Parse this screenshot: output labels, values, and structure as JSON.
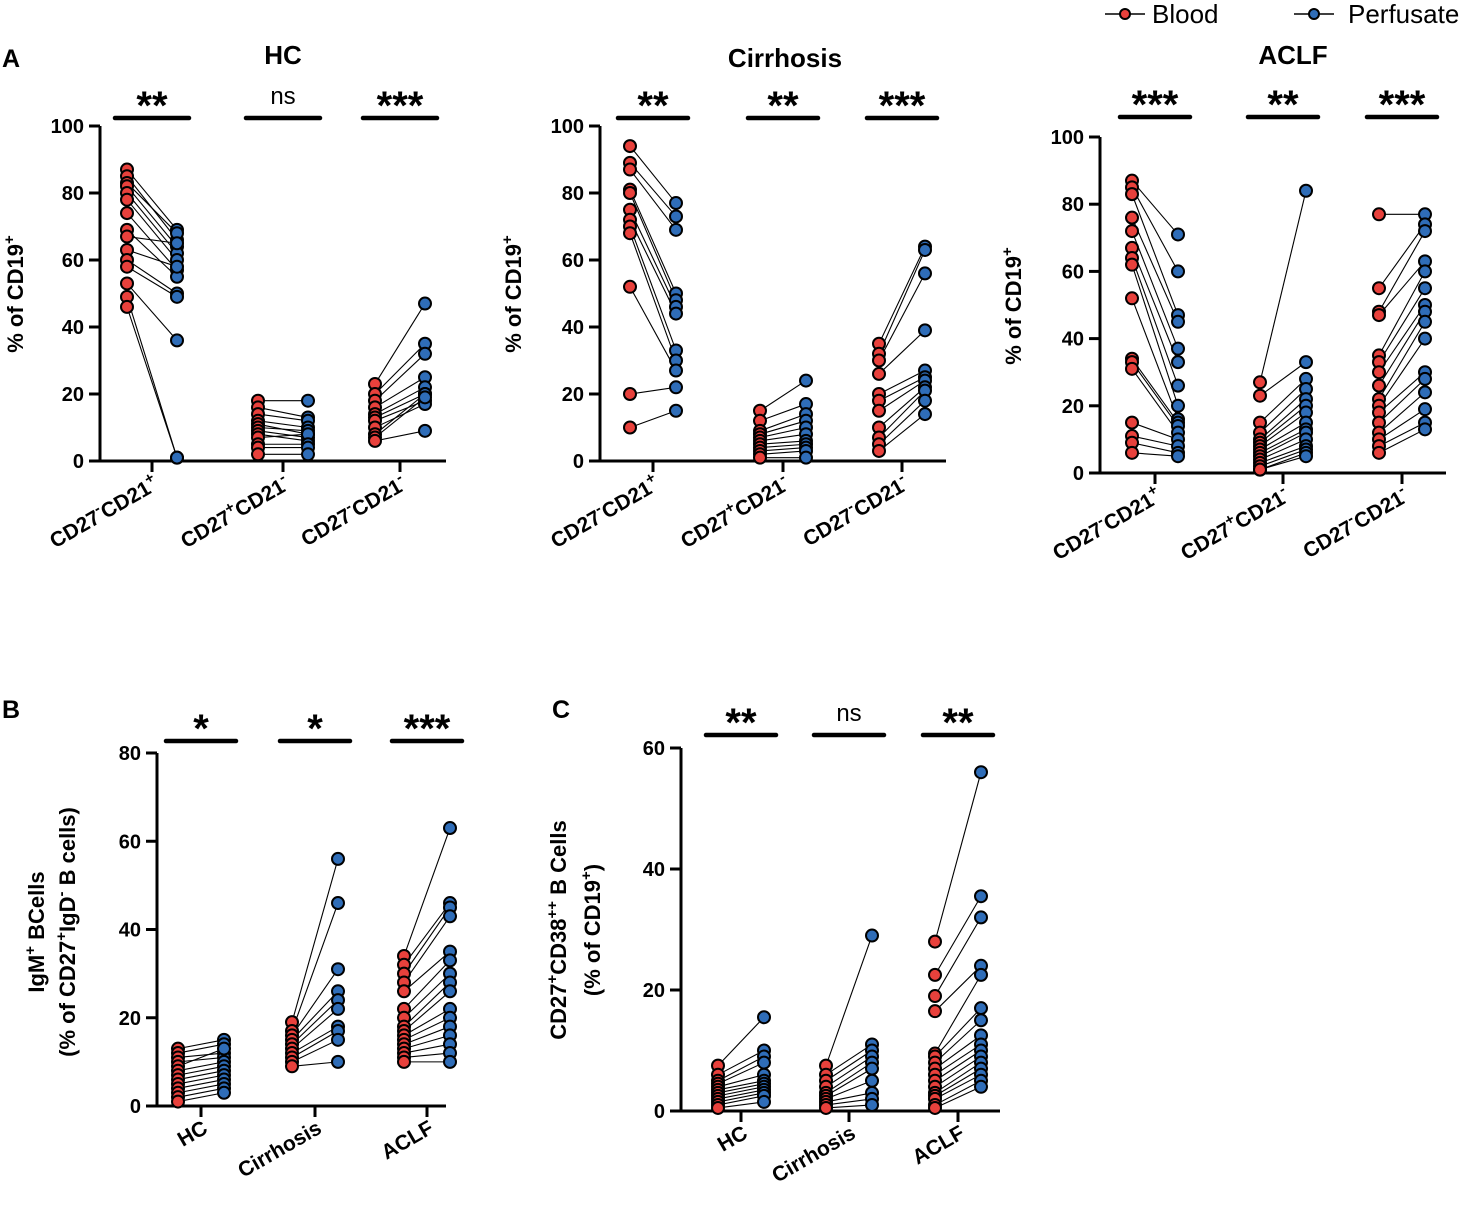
{
  "colors": {
    "blood": "#e8413c",
    "perfusate": "#2f6db8",
    "axis": "#000000"
  },
  "legend": {
    "blood_label": "Blood",
    "perfusate_label": "Perfusate"
  },
  "chart_data": [
    {
      "id": "A1",
      "type": "paired-dot",
      "panel_letter": "A",
      "title": "HC",
      "ylabel": "% of CD19+",
      "ylim": [
        0,
        100
      ],
      "yticks": [
        0,
        20,
        40,
        60,
        80,
        100
      ],
      "categories": [
        "CD27-CD21+",
        "CD27+CD21-",
        "CD27-CD21-"
      ],
      "significance": [
        "**",
        "ns",
        "***"
      ],
      "groups": [
        {
          "blood": [
            87,
            85,
            83,
            82,
            80,
            78,
            74,
            69,
            67,
            63,
            60,
            58,
            53,
            49,
            46
          ],
          "perfusate": [
            69,
            66,
            68,
            64,
            62,
            60,
            57,
            55,
            65,
            58,
            50,
            49,
            36,
            1,
            1
          ]
        },
        {
          "blood": [
            18,
            16,
            14,
            12,
            11,
            10,
            9,
            8,
            7,
            5,
            4,
            2
          ],
          "perfusate": [
            18,
            13,
            12,
            10,
            8,
            9,
            7,
            6,
            8,
            5,
            4,
            2
          ]
        },
        {
          "blood": [
            23,
            20,
            18,
            16,
            14,
            13,
            12,
            10,
            8,
            7,
            6
          ],
          "perfusate": [
            47,
            35,
            32,
            25,
            22,
            20,
            18,
            17,
            20,
            19,
            9
          ]
        }
      ]
    },
    {
      "id": "A2",
      "type": "paired-dot",
      "title": "Cirrhosis",
      "ylabel": "% of CD19+",
      "ylim": [
        0,
        100
      ],
      "yticks": [
        0,
        20,
        40,
        60,
        80,
        100
      ],
      "categories": [
        "CD27-CD21+",
        "CD27+CD21-",
        "CD27-CD21-"
      ],
      "significance": [
        "**",
        "**",
        "***"
      ],
      "groups": [
        {
          "blood": [
            94,
            89,
            87,
            81,
            80,
            75,
            72,
            70,
            68,
            52,
            20,
            10
          ],
          "perfusate": [
            77,
            73,
            69,
            50,
            48,
            46,
            44,
            33,
            30,
            27,
            22,
            15
          ]
        },
        {
          "blood": [
            15,
            12,
            9,
            8,
            7,
            6,
            5,
            4,
            3,
            2,
            1
          ],
          "perfusate": [
            24,
            17,
            14,
            12,
            10,
            8,
            6,
            5,
            4,
            3,
            1
          ]
        },
        {
          "blood": [
            35,
            32,
            30,
            26,
            20,
            18,
            15,
            10,
            7,
            5,
            3
          ],
          "perfusate": [
            64,
            63,
            56,
            39,
            27,
            25,
            24,
            22,
            21,
            18,
            14
          ]
        }
      ]
    },
    {
      "id": "A3",
      "type": "paired-dot",
      "title": "ACLF",
      "ylabel": "% of CD19+",
      "ylim": [
        0,
        100
      ],
      "yticks": [
        0,
        20,
        40,
        60,
        80,
        100
      ],
      "categories": [
        "CD27-CD21+",
        "CD27+CD21-",
        "CD27-CD21-"
      ],
      "significance": [
        "***",
        "**",
        "***"
      ],
      "groups": [
        {
          "blood": [
            87,
            85,
            83,
            76,
            72,
            67,
            64,
            62,
            52,
            34,
            33,
            31,
            15,
            11,
            9,
            6
          ],
          "perfusate": [
            71,
            60,
            47,
            45,
            37,
            33,
            26,
            20,
            16,
            15,
            14,
            12,
            10,
            8,
            6,
            5
          ]
        },
        {
          "blood": [
            27,
            23,
            15,
            12,
            10,
            9,
            8,
            7,
            6,
            5,
            4,
            3,
            2,
            1,
            1
          ],
          "perfusate": [
            84,
            33,
            28,
            25,
            22,
            20,
            18,
            15,
            13,
            12,
            10,
            8,
            7,
            6,
            5
          ]
        },
        {
          "blood": [
            77,
            55,
            48,
            47,
            35,
            33,
            30,
            26,
            22,
            20,
            18,
            15,
            12,
            10,
            8,
            6
          ],
          "perfusate": [
            77,
            74,
            72,
            63,
            60,
            55,
            50,
            48,
            45,
            40,
            30,
            28,
            24,
            19,
            15,
            13
          ]
        }
      ]
    },
    {
      "id": "B",
      "type": "paired-dot",
      "panel_letter": "B",
      "title": "",
      "ylabel_line1": "IgM+ BCells",
      "ylabel_line2": "(% of CD27+IgD- B cells)",
      "ylim": [
        0,
        80
      ],
      "yticks": [
        0,
        20,
        40,
        60,
        80
      ],
      "categories": [
        "HC",
        "Cirrhosis",
        "ACLF"
      ],
      "significance": [
        "*",
        "*",
        "***"
      ],
      "groups": [
        {
          "blood": [
            13,
            12,
            11,
            10,
            9,
            8,
            7,
            6,
            5,
            4,
            3,
            2,
            1
          ],
          "perfusate": [
            15,
            14,
            12,
            11,
            13,
            10,
            9,
            8,
            7,
            6,
            5,
            4,
            3
          ]
        },
        {
          "blood": [
            19,
            17,
            16,
            15,
            14,
            13,
            12,
            11,
            10,
            9
          ],
          "perfusate": [
            56,
            46,
            31,
            26,
            24,
            22,
            18,
            17,
            15,
            10
          ]
        },
        {
          "blood": [
            34,
            32,
            30,
            28,
            26,
            22,
            20,
            18,
            17,
            16,
            15,
            14,
            13,
            12,
            11,
            10
          ],
          "perfusate": [
            63,
            46,
            45,
            43,
            35,
            33,
            30,
            28,
            26,
            22,
            20,
            18,
            16,
            14,
            12,
            10
          ]
        }
      ]
    },
    {
      "id": "C",
      "type": "paired-dot",
      "panel_letter": "C",
      "title": "",
      "ylabel_line1": "CD27+CD38++ B Cells",
      "ylabel_line2": "(% of CD19+)",
      "ylim": [
        0,
        60
      ],
      "yticks": [
        0,
        20,
        40,
        60
      ],
      "categories": [
        "HC",
        "Cirrhosis",
        "ACLF"
      ],
      "significance": [
        "**",
        "ns",
        "**"
      ],
      "groups": [
        {
          "blood": [
            7.5,
            6,
            5,
            4.5,
            4,
            3.5,
            3,
            2.5,
            2,
            1.5,
            1,
            0.5
          ],
          "perfusate": [
            15.5,
            10,
            9,
            8,
            6,
            5,
            4.5,
            4,
            3.5,
            3,
            2.5,
            1.5
          ]
        },
        {
          "blood": [
            7.5,
            6,
            5,
            4,
            3,
            2.5,
            2,
            1.5,
            1,
            0.5
          ],
          "perfusate": [
            29,
            11,
            10,
            9,
            8,
            7,
            5,
            3,
            2,
            1
          ]
        },
        {
          "blood": [
            28,
            22.5,
            19,
            16.5,
            9.5,
            9,
            8,
            7,
            6,
            5,
            4,
            3,
            2.5,
            2,
            1,
            0.5
          ],
          "perfusate": [
            56,
            35.5,
            32,
            24,
            22.5,
            17,
            15,
            12.5,
            11,
            10,
            9,
            8,
            7,
            6,
            5,
            4
          ]
        }
      ]
    }
  ]
}
